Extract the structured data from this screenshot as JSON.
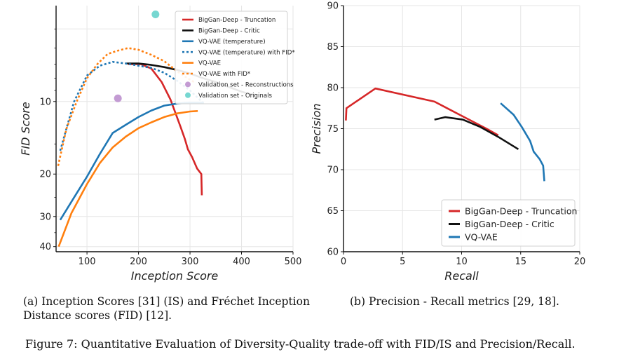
{
  "figure": {
    "caption_a": "(a) Inception Scores [31] (IS) and Fréchet Inception Distance scores (FID) [12].",
    "caption_b": "(b) Precision - Recall metrics [29, 18].",
    "caption": "Figure 7: Quantitative Evaluation of Diversity-Quality trade-off with FID/IS and Precision/Recall."
  },
  "chart_data": [
    {
      "id": "fid_is",
      "type": "line",
      "xlabel": "Inception Score",
      "ylabel": "FID Score",
      "xlim": [
        40,
        500
      ],
      "ylim": [
        42,
        4
      ],
      "yscale": "log",
      "x_ticks": [
        100,
        200,
        300,
        400,
        500
      ],
      "y_ticks": [
        10,
        20,
        30,
        40
      ],
      "grid": true,
      "legend": "top-right",
      "series": [
        {
          "name": "BigGan-Deep - Truncation",
          "color": "#d62728",
          "style": "solid",
          "x": [
            180,
            205,
            225,
            245,
            262,
            272,
            282,
            290,
            296,
            304,
            314,
            322,
            323
          ],
          "y": [
            7.0,
            7.0,
            7.3,
            8.3,
            9.8,
            11.2,
            12.8,
            14.3,
            15.8,
            17.0,
            19.0,
            20.0,
            24.5
          ]
        },
        {
          "name": "BigGan-Deep - Critic",
          "color": "#111111",
          "style": "solid",
          "x": [
            175,
            200,
            225,
            250,
            275,
            300,
            325,
            350,
            375,
            400,
            415,
            430
          ],
          "y": [
            6.95,
            6.95,
            7.05,
            7.2,
            7.4,
            7.65,
            8.0,
            8.3,
            8.7,
            9.1,
            9.3,
            9.4
          ]
        },
        {
          "name": "VQ-VAE (temperature)",
          "color": "#1f77b4",
          "style": "solid",
          "x": [
            48,
            75,
            100,
            125,
            150,
            175,
            200,
            225,
            250,
            275,
            300,
            327
          ],
          "y": [
            31.0,
            25.0,
            20.5,
            16.5,
            13.5,
            12.5,
            11.6,
            10.9,
            10.4,
            10.2,
            10.1,
            10.1
          ]
        },
        {
          "name": "VQ-VAE (temperature) with FID*",
          "color": "#1f77b4",
          "style": "dotted",
          "x": [
            48,
            75,
            100,
            125,
            150,
            175,
            200,
            225,
            250,
            275,
            300,
            325
          ],
          "y": [
            16.0,
            10.0,
            7.8,
            7.1,
            6.85,
            6.95,
            7.1,
            7.25,
            7.6,
            8.2,
            9.0,
            10.1
          ]
        },
        {
          "name": "VQ-VAE",
          "color": "#ff7f0e",
          "style": "solid",
          "x": [
            45,
            70,
            100,
            125,
            150,
            175,
            200,
            225,
            250,
            275,
            300,
            315
          ],
          "y": [
            40.0,
            29.0,
            22.0,
            18.0,
            15.5,
            14.0,
            12.9,
            12.2,
            11.6,
            11.2,
            11.0,
            10.95
          ]
        },
        {
          "name": "VQ-VAE with FID*",
          "color": "#ff7f0e",
          "style": "dotted",
          "x": [
            44,
            60,
            80,
            100,
            120,
            140,
            160,
            180,
            200,
            225,
            250,
            275,
            295,
            308
          ],
          "y": [
            18.5,
            13.0,
            10.0,
            8.0,
            7.0,
            6.35,
            6.15,
            6.0,
            6.1,
            6.4,
            6.8,
            7.5,
            8.0,
            8.3
          ]
        },
        {
          "name": "Validation set - Reconstructions",
          "color": "#c39bd3",
          "style": "marker",
          "x": [
            160
          ],
          "y": [
            9.7
          ]
        },
        {
          "name": "Validation set - Originals",
          "color": "#76d7d1",
          "style": "marker",
          "x": [
            233
          ],
          "y": [
            4.35
          ]
        }
      ]
    },
    {
      "id": "precision_recall",
      "type": "line",
      "xlabel": "Recall",
      "ylabel": "Precision",
      "xlim": [
        0,
        20
      ],
      "ylim": [
        60,
        90
      ],
      "x_ticks": [
        0,
        5,
        10,
        15,
        20
      ],
      "y_ticks": [
        60,
        65,
        70,
        75,
        80,
        85,
        90
      ],
      "grid": true,
      "legend": "bottom-right",
      "series": [
        {
          "name": "BigGan-Deep - Truncation",
          "color": "#d62728",
          "x": [
            0.2,
            0.25,
            2.7,
            7.7,
            10.1,
            12.1,
            13.1
          ],
          "y": [
            76.0,
            77.5,
            79.9,
            78.3,
            76.5,
            75.0,
            74.2
          ]
        },
        {
          "name": "BigGan-Deep - Critic",
          "color": "#111111",
          "x": [
            7.7,
            8.6,
            10.1,
            11.6,
            13.1,
            14.8
          ],
          "y": [
            76.1,
            76.4,
            76.1,
            75.2,
            74.0,
            72.5
          ]
        },
        {
          "name": "VQ-VAE",
          "color": "#1f77b4",
          "x": [
            13.3,
            14.4,
            15.1,
            15.8,
            16.1,
            16.6,
            16.9,
            17.0
          ],
          "y": [
            78.1,
            76.7,
            75.2,
            73.5,
            72.2,
            71.3,
            70.5,
            68.6
          ]
        }
      ]
    }
  ]
}
